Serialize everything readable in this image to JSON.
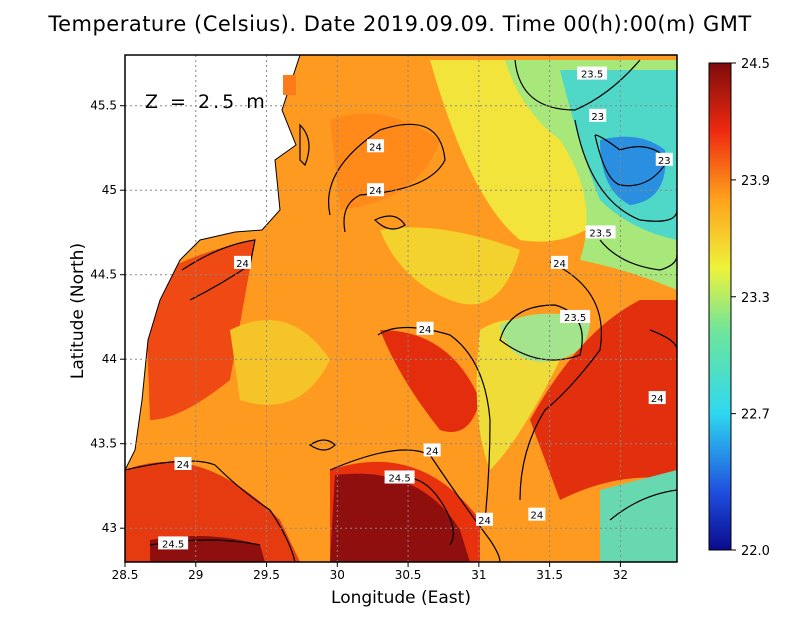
{
  "chart_data": {
    "type": "heatmap",
    "title": "Temperature (Celsius). Date 2019.09.09. Time 00(h):00(m) GMT",
    "annotation": "Z = 2.5 m",
    "xlabel": "Longitude (East)",
    "ylabel": "Latitude (North)",
    "xlim": [
      28.5,
      32.4
    ],
    "ylim": [
      42.8,
      45.8
    ],
    "x_ticks": [
      "28.5",
      "29",
      "29.5",
      "30",
      "30.5",
      "31",
      "31.5",
      "32"
    ],
    "y_ticks": [
      "43",
      "43.5",
      "44",
      "44.5",
      "45",
      "45.5"
    ],
    "grid": true,
    "colorbar": {
      "min": 22.0,
      "max": 24.5,
      "ticks": [
        "24.5",
        "23.9",
        "23.3",
        "22.7",
        "22.0"
      ]
    },
    "contour_labels": [
      {
        "text": "23.5",
        "lon": 31.8,
        "lat": 45.69
      },
      {
        "text": "23",
        "lon": 31.84,
        "lat": 45.44
      },
      {
        "text": "23",
        "lon": 32.31,
        "lat": 45.18
      },
      {
        "text": "24",
        "lon": 30.27,
        "lat": 45.26
      },
      {
        "text": "24",
        "lon": 30.27,
        "lat": 45.0
      },
      {
        "text": "23.5",
        "lon": 31.86,
        "lat": 44.75
      },
      {
        "text": "24",
        "lon": 29.33,
        "lat": 44.57
      },
      {
        "text": "24",
        "lon": 31.57,
        "lat": 44.57
      },
      {
        "text": "23.5",
        "lon": 31.68,
        "lat": 44.25
      },
      {
        "text": "24",
        "lon": 30.62,
        "lat": 44.18
      },
      {
        "text": "24",
        "lon": 32.26,
        "lat": 43.77
      },
      {
        "text": "24",
        "lon": 30.67,
        "lat": 43.46
      },
      {
        "text": "24",
        "lon": 28.91,
        "lat": 43.38
      },
      {
        "text": "24.5",
        "lon": 30.44,
        "lat": 43.3
      },
      {
        "text": "24",
        "lon": 31.41,
        "lat": 43.08
      },
      {
        "text": "24",
        "lon": 31.04,
        "lat": 43.05
      },
      {
        "text": "24.5",
        "lon": 28.84,
        "lat": 42.91
      }
    ]
  }
}
